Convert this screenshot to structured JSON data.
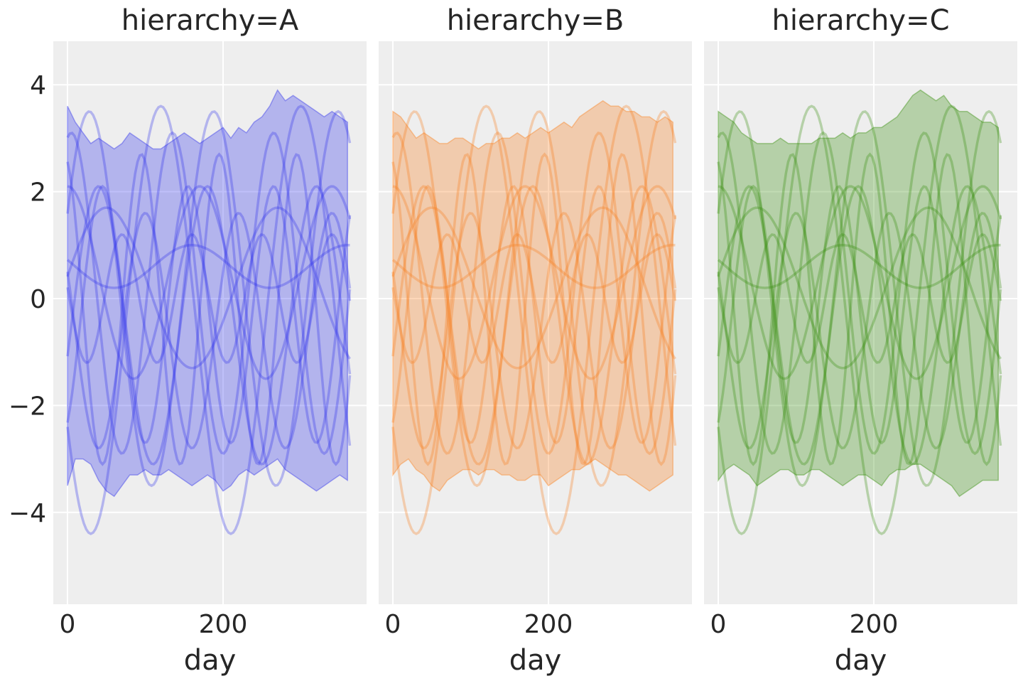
{
  "chart_data": {
    "type": "line",
    "subtype": "faceted line with shaded interval band",
    "xlabel": "day",
    "ylabel": "",
    "xlim": [
      -9,
      392
    ],
    "ylim": [
      -5.7,
      4.8
    ],
    "x_ticks": [
      0,
      200
    ],
    "x_tick_labels": [
      "0",
      "200"
    ],
    "y_ticks": [
      4,
      2,
      0,
      -2,
      -4
    ],
    "y_tick_labels": [
      "4",
      "2",
      "0",
      "−2",
      "−4"
    ],
    "grid": true,
    "band_days": [
      0,
      10,
      20,
      30,
      40,
      50,
      60,
      70,
      80,
      90,
      100,
      110,
      120,
      130,
      140,
      150,
      160,
      170,
      180,
      190,
      200,
      210,
      220,
      230,
      240,
      250,
      260,
      270,
      280,
      290,
      300,
      310,
      320,
      330,
      340,
      350,
      360
    ],
    "curve_model": "y = offset + amp * cos(2*pi*(day - peak_day)/period_days), sampled day 0..365",
    "curves": [
      {
        "amp": 3.5,
        "period_days": 160,
        "peak_day": 28,
        "offset": 0.0
      },
      {
        "amp": 4.0,
        "period_days": 180,
        "peak_day": 300,
        "offset": -0.4
      },
      {
        "amp": 3.0,
        "period_days": 130,
        "peak_day": 135,
        "offset": 0.1
      },
      {
        "amp": 2.4,
        "period_days": 110,
        "peak_day": 155,
        "offset": -0.3
      },
      {
        "amp": 1.5,
        "period_days": 220,
        "peak_day": 270,
        "offset": 0.2
      },
      {
        "amp": 0.4,
        "period_days": 200,
        "peak_day": 160,
        "offset": 0.6
      },
      {
        "amp": 2.6,
        "period_days": 140,
        "peak_day": 320,
        "offset": -0.5
      },
      {
        "amp": 1.2,
        "period_days": 90,
        "peak_day": 70,
        "offset": 0.0
      },
      {
        "amp": 2.2,
        "period_days": 120,
        "peak_day": 220,
        "offset": -0.6
      },
      {
        "amp": 1.8,
        "period_days": 170,
        "peak_day": 0,
        "offset": 0.3
      },
      {
        "amp": 2.9,
        "period_days": 100,
        "peak_day": -5,
        "offset": -0.2
      }
    ],
    "panels": [
      {
        "title": "hierarchy=A",
        "color": "#2a2eec",
        "band_upper": [
          3.6,
          3.3,
          3.1,
          2.9,
          3.0,
          2.9,
          2.8,
          2.9,
          3.1,
          3.0,
          2.9,
          2.8,
          2.8,
          2.9,
          3.0,
          3.1,
          3.0,
          2.9,
          3.0,
          3.1,
          3.2,
          3.0,
          3.2,
          3.1,
          3.3,
          3.4,
          3.6,
          3.9,
          3.7,
          3.8,
          3.7,
          3.6,
          3.5,
          3.4,
          3.5,
          3.4,
          3.3
        ],
        "band_lower": [
          -3.5,
          -3.0,
          -3.0,
          -3.1,
          -3.4,
          -3.6,
          -3.7,
          -3.5,
          -3.3,
          -3.3,
          -3.2,
          -3.3,
          -3.3,
          -3.2,
          -3.3,
          -3.4,
          -3.5,
          -3.4,
          -3.3,
          -3.4,
          -3.6,
          -3.5,
          -3.3,
          -3.2,
          -3.3,
          -3.2,
          -3.1,
          -3.0,
          -3.2,
          -3.3,
          -3.4,
          -3.5,
          -3.6,
          -3.5,
          -3.4,
          -3.3,
          -3.4
        ]
      },
      {
        "title": "hierarchy=B",
        "color": "#fa7c17",
        "band_upper": [
          3.5,
          3.4,
          3.2,
          3.0,
          3.1,
          3.0,
          2.9,
          2.9,
          3.0,
          3.0,
          2.9,
          2.8,
          2.9,
          2.9,
          3.0,
          3.0,
          3.1,
          3.0,
          3.1,
          3.2,
          3.1,
          3.2,
          3.3,
          3.2,
          3.4,
          3.5,
          3.6,
          3.7,
          3.6,
          3.6,
          3.5,
          3.5,
          3.4,
          3.4,
          3.3,
          3.4,
          3.3
        ],
        "band_lower": [
          -3.3,
          -3.1,
          -3.0,
          -3.2,
          -3.3,
          -3.5,
          -3.6,
          -3.4,
          -3.3,
          -3.2,
          -3.2,
          -3.3,
          -3.2,
          -3.2,
          -3.3,
          -3.3,
          -3.4,
          -3.4,
          -3.3,
          -3.3,
          -3.5,
          -3.4,
          -3.3,
          -3.2,
          -3.2,
          -3.1,
          -3.0,
          -3.1,
          -3.2,
          -3.3,
          -3.3,
          -3.4,
          -3.5,
          -3.6,
          -3.5,
          -3.4,
          -3.3
        ]
      },
      {
        "title": "hierarchy=C",
        "color": "#328c06",
        "band_upper": [
          3.5,
          3.4,
          3.3,
          3.1,
          3.0,
          2.9,
          2.9,
          2.9,
          3.0,
          2.9,
          2.9,
          2.9,
          2.9,
          3.0,
          3.0,
          3.0,
          3.1,
          3.0,
          3.1,
          3.1,
          3.2,
          3.2,
          3.3,
          3.4,
          3.6,
          3.8,
          3.9,
          3.8,
          3.7,
          3.8,
          3.6,
          3.5,
          3.5,
          3.4,
          3.3,
          3.3,
          3.2
        ],
        "band_lower": [
          -3.4,
          -3.2,
          -3.1,
          -3.2,
          -3.3,
          -3.5,
          -3.4,
          -3.3,
          -3.2,
          -3.2,
          -3.3,
          -3.3,
          -3.2,
          -3.2,
          -3.3,
          -3.4,
          -3.5,
          -3.4,
          -3.3,
          -3.3,
          -3.4,
          -3.5,
          -3.3,
          -3.2,
          -3.2,
          -3.1,
          -3.1,
          -3.2,
          -3.3,
          -3.4,
          -3.5,
          -3.7,
          -3.6,
          -3.5,
          -3.4,
          -3.4,
          -3.4
        ]
      }
    ]
  }
}
